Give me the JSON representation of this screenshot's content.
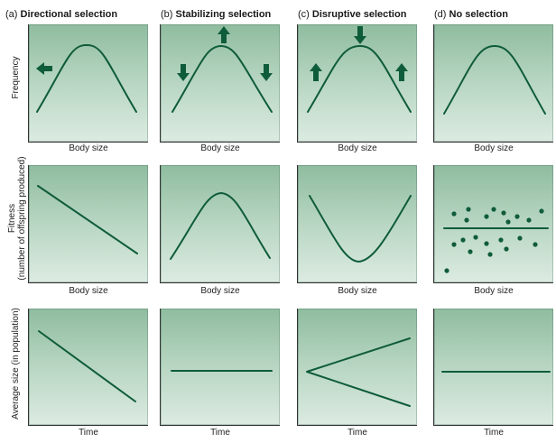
{
  "columns": [
    {
      "tag": "(a)",
      "name": "Directional selection"
    },
    {
      "tag": "(b)",
      "name": "Stabilizing selection"
    },
    {
      "tag": "(c)",
      "name": "Disruptive selection"
    },
    {
      "tag": "(d)",
      "name": "No selection"
    }
  ],
  "rows": [
    {
      "ylabel": [
        "Frequency"
      ],
      "xlabel": "Body size"
    },
    {
      "ylabel": [
        "Fitness",
        "(number of offspring produced)"
      ],
      "xlabel": "Body size"
    },
    {
      "ylabel": [
        "Average size (in population)"
      ],
      "xlabel": "Time"
    }
  ],
  "colors": {
    "line": "#0f5c3a",
    "arrow": "#0f5c3a",
    "panel_top": "#8fbc9f",
    "panel_bottom": "#dcebe2",
    "axis": "#333333"
  },
  "arrow_meaning": {
    "directional": "selection against large sizes",
    "stabilizing": "selection against both extremes",
    "disruptive": "selection against intermediate sizes"
  }
}
